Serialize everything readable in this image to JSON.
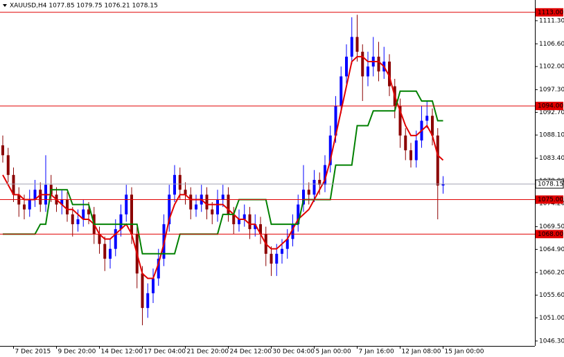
{
  "chart_data": {
    "type": "candlestick",
    "header": "XAUUSD,H4  1077.85 1079.75 1076.21 1078.15",
    "up_color": "#0000ff",
    "down_color": "#8b0000",
    "categories": [
      null,
      null,
      "7 Dec 2015",
      null,
      null,
      null,
      null,
      null,
      null,
      null,
      "9 Dec 20:00",
      null,
      null,
      null,
      null,
      null,
      null,
      null,
      "14 Dec 12:00",
      null,
      null,
      null,
      null,
      null,
      null,
      null,
      "17 Dec 04:00",
      null,
      null,
      null,
      null,
      null,
      null,
      null,
      "21 Dec 20:00",
      null,
      null,
      null,
      null,
      null,
      null,
      null,
      "24 Dec 12:00",
      null,
      null,
      null,
      null,
      null,
      null,
      null,
      "30 Dec 04:00",
      null,
      null,
      null,
      null,
      null,
      null,
      null,
      "5 Jan 00:00",
      null,
      null,
      null,
      null,
      null,
      null,
      null,
      "7 Jan 16:00",
      null,
      null,
      null,
      null,
      null,
      null,
      null,
      "12 Jan 08:00",
      null,
      null,
      null,
      null,
      null,
      null,
      null,
      "15 Jan 00:00"
    ],
    "open": [
      1086,
      1084,
      1080,
      1076,
      1074,
      1073,
      1075,
      1077,
      1074,
      1078,
      1076,
      1074,
      1075,
      1072,
      1070,
      1071,
      1073,
      1072,
      1068,
      1066,
      1063,
      1065,
      1069,
      1072,
      1076,
      1068,
      1060,
      1053,
      1056,
      1059,
      1063,
      1070,
      1076,
      1080,
      1077,
      1076,
      1073,
      1074,
      1076,
      1073,
      1072,
      1075,
      1076,
      1072,
      1070,
      1071,
      1072,
      1069,
      1070,
      1068,
      1064,
      1062,
      1064,
      1065,
      1067,
      1070,
      1074,
      1077,
      1076,
      1079,
      1078,
      1082,
      1088,
      1094,
      1100,
      1104,
      1108,
      1105,
      1100,
      1102,
      1104,
      1101,
      1103,
      1098,
      1094,
      1088,
      1085,
      1083,
      1087,
      1091,
      1092,
      1088,
      1077.85
    ],
    "high": [
      1088,
      1085.5,
      1081.5,
      1077.5,
      1076,
      1077,
      1079,
      1078.5,
      1084,
      1080,
      1077.5,
      1077,
      1076.5,
      1073.5,
      1073,
      1075,
      1074.5,
      1073.5,
      1069.5,
      1067.5,
      1067,
      1071,
      1074,
      1078,
      1077.5,
      1069.5,
      1061.5,
      1058,
      1061,
      1065,
      1072,
      1078,
      1082,
      1081.5,
      1078.5,
      1077.5,
      1076,
      1078,
      1077.5,
      1074.5,
      1077,
      1078,
      1077.5,
      1073.5,
      1073,
      1074,
      1073.5,
      1072,
      1071.5,
      1069.5,
      1065.5,
      1066,
      1067,
      1069,
      1072,
      1076,
      1082,
      1078.5,
      1081,
      1080.5,
      1084,
      1090,
      1096,
      1102,
      1106.5,
      1112,
      1112.5,
      1106.5,
      1105,
      1108,
      1107,
      1106,
      1104.5,
      1099.5,
      1095.5,
      1089.5,
      1086.5,
      1089,
      1094,
      1095,
      1093.5,
      1089.5,
      1079.75
    ],
    "low": [
      1082.5,
      1078.5,
      1074.5,
      1071.5,
      1071,
      1071.5,
      1073.5,
      1072.5,
      1072.5,
      1074.5,
      1072.5,
      1072,
      1070.5,
      1067.5,
      1068.5,
      1069.5,
      1070,
      1066,
      1064,
      1060.5,
      1061,
      1063.5,
      1067.5,
      1070.5,
      1066,
      1057,
      1049.5,
      1051,
      1054,
      1057.5,
      1061.5,
      1068.5,
      1074.5,
      1075,
      1074,
      1071,
      1071.5,
      1072.5,
      1071,
      1070,
      1070.5,
      1073.5,
      1070.5,
      1068,
      1068.5,
      1069.5,
      1067,
      1067.5,
      1066,
      1061.5,
      1059.5,
      1059.5,
      1062,
      1063,
      1065.5,
      1068.5,
      1072.5,
      1074,
      1074.5,
      1076,
      1076.5,
      1080.5,
      1086.5,
      1092.5,
      1098.5,
      1102.5,
      1103,
      1095,
      1098,
      1100,
      1099,
      1099.5,
      1096,
      1091.5,
      1085.5,
      1083,
      1081.5,
      1081.5,
      1085.5,
      1089.5,
      1086,
      1071,
      1076.21
    ],
    "close": [
      1084,
      1080,
      1076,
      1074,
      1073,
      1075,
      1077,
      1074,
      1078,
      1076,
      1074,
      1075,
      1072,
      1070,
      1071,
      1073,
      1072,
      1068,
      1066,
      1063,
      1065,
      1069,
      1072,
      1076,
      1068,
      1060,
      1053,
      1056,
      1059,
      1063,
      1070,
      1076,
      1080,
      1077,
      1076,
      1073,
      1074,
      1076,
      1073,
      1072,
      1075,
      1076,
      1072,
      1070,
      1071,
      1072,
      1069,
      1070,
      1068,
      1064,
      1062,
      1064,
      1065,
      1067,
      1070,
      1074,
      1077,
      1076,
      1079,
      1078,
      1082,
      1088,
      1094,
      1100,
      1104,
      1108,
      1105,
      1100,
      1102,
      1104,
      1101,
      1103,
      1098,
      1094,
      1088,
      1085,
      1083,
      1087,
      1091,
      1092,
      1088,
      1077.85,
      1078.15
    ],
    "lines": [
      {
        "color": "#e00000",
        "values": [
          1080,
          1078,
          1076,
          1076,
          1075,
          1075,
          1075,
          1076,
          1076,
          1076,
          1075,
          1074,
          1073,
          1073,
          1072,
          1071,
          1071,
          1070,
          1068,
          1067,
          1067,
          1068,
          1069,
          1070,
          1068,
          1064,
          1060,
          1059,
          1059,
          1062,
          1066,
          1071,
          1074,
          1076,
          1076,
          1075,
          1075,
          1075,
          1074,
          1074,
          1074,
          1074,
          1073,
          1072,
          1071,
          1071,
          1070,
          1070,
          1068,
          1066,
          1065,
          1065,
          1066,
          1067,
          1069,
          1071,
          1072,
          1073,
          1075,
          1077,
          1079,
          1083,
          1088,
          1093,
          1098,
          1103,
          1104,
          1104,
          1103,
          1103,
          1103,
          1102,
          1100,
          1096,
          1093,
          1090,
          1088,
          1088,
          1089,
          1090,
          1088,
          1084,
          1083
        ]
      },
      {
        "color": "#008000",
        "values": [
          1068,
          1068,
          1068,
          1068,
          1068,
          1068,
          1068,
          1070,
          1070,
          1077,
          1077,
          1077,
          1077,
          1074,
          1074,
          1074,
          1074,
          1070,
          1070,
          1070,
          1070,
          1070,
          1070,
          1070,
          1070,
          1070,
          1064,
          1064,
          1064,
          1064,
          1064,
          1064,
          1064,
          1068,
          1068,
          1068,
          1068,
          1068,
          1068,
          1068,
          1068,
          1072,
          1072,
          1072,
          1075,
          1075,
          1075,
          1075,
          1075,
          1075,
          1070,
          1070,
          1070,
          1070,
          1070,
          1070,
          1075,
          1075,
          1075,
          1075,
          1075,
          1075,
          1082,
          1082,
          1082,
          1082,
          1090,
          1090,
          1090,
          1093,
          1093,
          1093,
          1093,
          1093,
          1097,
          1097,
          1097,
          1097,
          1095,
          1095,
          1095,
          1091,
          1091
        ]
      }
    ],
    "levels": [
      {
        "value": 1113,
        "label": "1113.00"
      },
      {
        "value": 1094,
        "label": "1094.00"
      },
      {
        "value": 1075,
        "label": "1075.00"
      },
      {
        "value": 1068,
        "label": "1068.00"
      }
    ],
    "level_color": "#e00000",
    "last_price": 1078.15,
    "ylim": [
      1045.3,
      1115.5
    ],
    "yticks": [
      {
        "value": 1111.3,
        "label": "1111.30"
      },
      {
        "value": 1106.6,
        "label": "1106.60"
      },
      {
        "value": 1102,
        "label": "1102.00"
      },
      {
        "value": 1097.3,
        "label": "1097.30"
      },
      {
        "value": 1092.7,
        "label": "1092.70"
      },
      {
        "value": 1088.1,
        "label": "1088.10"
      },
      {
        "value": 1083.4,
        "label": "1083.40"
      },
      {
        "value": 1078.8,
        "label": "1078.80"
      },
      {
        "value": 1074.2,
        "label": "1074.20"
      },
      {
        "value": 1069.5,
        "label": "1069.50"
      },
      {
        "value": 1064.9,
        "label": "1064.90"
      },
      {
        "value": 1060.2,
        "label": "1060.20"
      },
      {
        "value": 1055.6,
        "label": "1055.60"
      },
      {
        "value": 1051,
        "label": "1051.00"
      },
      {
        "value": 1046.3,
        "label": "1046.30"
      }
    ]
  }
}
